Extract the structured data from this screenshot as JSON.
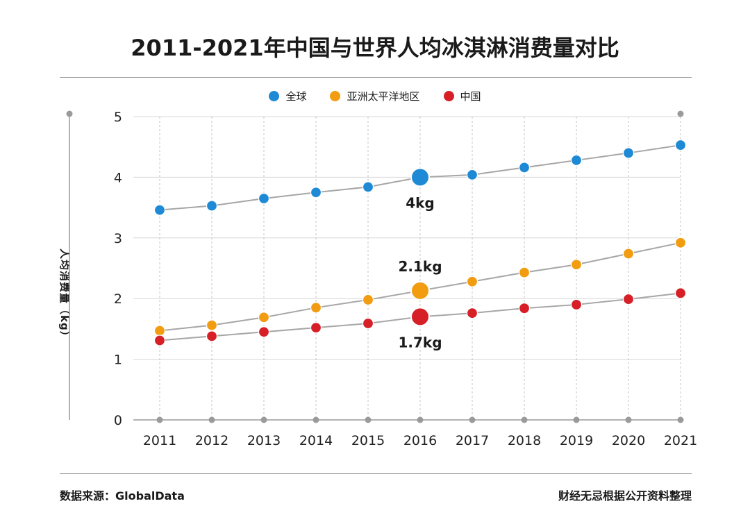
{
  "title": "2011-2021年中国与世界人均冰淇淋消费量对比",
  "legend": [
    {
      "label": "全球",
      "color": "#1e8ad6"
    },
    {
      "label": "亚洲太平洋地区",
      "color": "#f29c11"
    },
    {
      "label": "中国",
      "color": "#d61f26"
    }
  ],
  "ylabel": "人均消费量（kg）",
  "footer": {
    "source": "数据来源：GlobalData",
    "credit": "财经无忌根据公开资料整理"
  },
  "chart_data": {
    "type": "line",
    "title": "2011-2021年中国与世界人均冰淇淋消费量对比",
    "xlabel": "",
    "ylabel": "人均消费量（kg）",
    "x": [
      "2011",
      "2012",
      "2013",
      "2014",
      "2015",
      "2016",
      "2017",
      "2018",
      "2019",
      "2020",
      "2021"
    ],
    "ylim": [
      0,
      5
    ],
    "yticks": [
      "0",
      "1",
      "2",
      "3",
      "4",
      "5"
    ],
    "grid": true,
    "legend_position": "top-center",
    "series": [
      {
        "name": "全球",
        "color": "#1e8ad6",
        "values": [
          3.46,
          3.53,
          3.65,
          3.75,
          3.84,
          4.0,
          4.04,
          4.16,
          4.28,
          4.4,
          4.53
        ]
      },
      {
        "name": "亚洲太平洋地区",
        "color": "#f29c11",
        "values": [
          1.47,
          1.56,
          1.69,
          1.85,
          1.98,
          2.13,
          2.28,
          2.43,
          2.56,
          2.74,
          2.92
        ]
      },
      {
        "name": "中国",
        "color": "#d61f26",
        "values": [
          1.31,
          1.38,
          1.45,
          1.52,
          1.59,
          1.7,
          1.76,
          1.84,
          1.9,
          1.99,
          2.09
        ]
      }
    ],
    "annotations": [
      {
        "series": 0,
        "x": "2016",
        "text": "4kg"
      },
      {
        "series": 1,
        "x": "2016",
        "text": "2.1kg"
      },
      {
        "series": 2,
        "x": "2016",
        "text": "1.7kg"
      }
    ]
  }
}
